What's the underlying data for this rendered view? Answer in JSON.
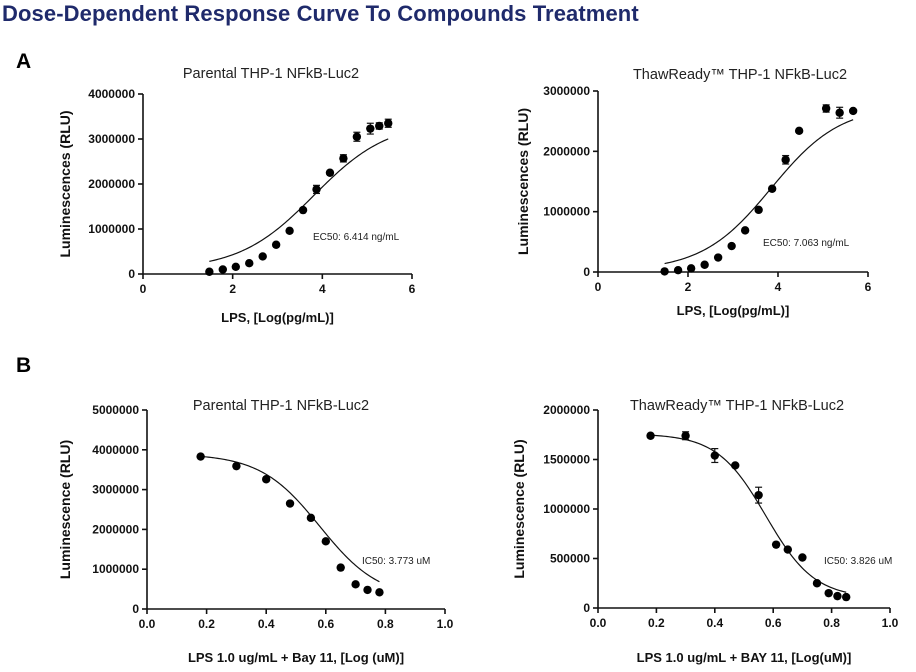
{
  "title": "Dose-Dependent Response Curve To Compounds Treatment",
  "panels": {
    "a": "A",
    "b": "B"
  },
  "chart_data": [
    {
      "type": "scatter",
      "panel": "A",
      "title": "Parental THP-1 NFkB-Luc2",
      "xlabel": "LPS, [Log(pg/mL)]",
      "ylabel": "Luminescences (RLU)",
      "xlim": [
        0,
        6
      ],
      "ylim": [
        0,
        4000000
      ],
      "xticks": [
        0,
        2,
        4,
        6
      ],
      "xtick_labels": [
        "0",
        "2",
        "4",
        "6"
      ],
      "yticks": [
        0,
        1000000,
        2000000,
        3000000,
        4000000
      ],
      "ytick_labels": [
        "0",
        "1000000",
        "2000000",
        "3000000",
        "4000000"
      ],
      "annotation": "EC50: 6.414 ng/mL",
      "fit": {
        "model": "sigmoid",
        "bottom": 90000,
        "top": 3400000,
        "mid": 3.81,
        "hill": 1.2
      },
      "series": [
        {
          "x": [
            1.48,
            1.78,
            2.07,
            2.37,
            2.67,
            2.97,
            3.27,
            3.57,
            3.87,
            4.17,
            4.47,
            4.77,
            5.07,
            5.27,
            5.47
          ],
          "y": [
            50000,
            100000,
            160000,
            240000,
            390000,
            650000,
            960000,
            1420000,
            1880000,
            2250000,
            2570000,
            3050000,
            3230000,
            3290000,
            3350000
          ],
          "err": [
            0,
            0,
            0,
            0,
            0,
            0,
            0,
            0,
            90000,
            0,
            80000,
            100000,
            120000,
            70000,
            90000
          ]
        }
      ]
    },
    {
      "type": "scatter",
      "panel": "A",
      "title": "ThawReady™ THP-1 NFkB-Luc2",
      "xlabel": "LPS, [Log(pg/mL)]",
      "ylabel": "Luminescences (RLU)",
      "xlim": [
        0,
        6
      ],
      "ylim": [
        0,
        3000000
      ],
      "xticks": [
        0,
        2,
        4,
        6
      ],
      "xtick_labels": [
        "0",
        "2",
        "4",
        "6"
      ],
      "yticks": [
        0,
        1000000,
        2000000,
        3000000
      ],
      "ytick_labels": [
        "0",
        "1000000",
        "2000000",
        "3000000"
      ],
      "annotation": "EC50: 7.063 ng/mL",
      "fit": {
        "model": "sigmoid",
        "bottom": 20000,
        "top": 2760000,
        "mid": 3.85,
        "hill": 1.3
      },
      "series": [
        {
          "x": [
            1.48,
            1.78,
            2.07,
            2.37,
            2.67,
            2.97,
            3.27,
            3.57,
            3.87,
            4.17,
            4.47,
            5.07,
            5.37,
            5.67
          ],
          "y": [
            10000,
            30000,
            60000,
            120000,
            240000,
            430000,
            690000,
            1030000,
            1380000,
            1860000,
            2340000,
            2710000,
            2640000,
            2670000
          ],
          "err": [
            0,
            0,
            0,
            0,
            0,
            0,
            0,
            0,
            0,
            70000,
            0,
            60000,
            90000,
            0
          ]
        }
      ]
    },
    {
      "type": "scatter",
      "panel": "B",
      "title": "Parental THP-1 NFkB-Luc2",
      "xlabel": "LPS 1.0 ug/mL + Bay 11, [Log (uM)]",
      "ylabel": "Luminescence (RLU)",
      "xlim": [
        0,
        1.0
      ],
      "ylim": [
        0,
        5000000
      ],
      "xticks": [
        0,
        0.2,
        0.4,
        0.6,
        0.8,
        1.0
      ],
      "xtick_labels": [
        "0.0",
        "0.2",
        "0.4",
        "0.6",
        "0.8",
        "1.0"
      ],
      "yticks": [
        0,
        1000000,
        2000000,
        3000000,
        4000000,
        5000000
      ],
      "ytick_labels": [
        "0",
        "1000000",
        "2000000",
        "3000000",
        "4000000",
        "5000000"
      ],
      "annotation": "IC50: 3.773 uM",
      "fit": {
        "model": "sigmoid",
        "bottom": 250000,
        "top": 3900000,
        "mid": 0.58,
        "hill": -10
      },
      "series": [
        {
          "x": [
            0.18,
            0.3,
            0.4,
            0.48,
            0.55,
            0.6,
            0.65,
            0.7,
            0.74,
            0.78
          ],
          "y": [
            3830000,
            3590000,
            3260000,
            2650000,
            2290000,
            1700000,
            1040000,
            620000,
            480000,
            420000
          ],
          "err": [
            0,
            0,
            0,
            0,
            0,
            0,
            0,
            0,
            0,
            0
          ]
        }
      ]
    },
    {
      "type": "scatter",
      "panel": "B",
      "title": "ThawReady™ THP-1 NFkB-Luc2",
      "xlabel": "LPS 1.0 ug/mL + BAY 11, [Log(uM)]",
      "ylabel": "Luminescence (RLU)",
      "xlim": [
        0,
        1.0
      ],
      "ylim": [
        0,
        2000000
      ],
      "xticks": [
        0,
        0.2,
        0.4,
        0.6,
        0.8,
        1.0
      ],
      "xtick_labels": [
        "0.0",
        "0.2",
        "0.4",
        "0.6",
        "0.8",
        "1.0"
      ],
      "yticks": [
        0,
        500000,
        1000000,
        1500000,
        2000000
      ],
      "ytick_labels": [
        "0",
        "500000",
        "1000000",
        "1500000",
        "2000000"
      ],
      "annotation": "IC50: 3.826 uM",
      "fit": {
        "model": "sigmoid",
        "bottom": 100000,
        "top": 1760000,
        "mid": 0.575,
        "hill": -12
      },
      "series": [
        {
          "x": [
            0.18,
            0.3,
            0.4,
            0.47,
            0.55,
            0.61,
            0.65,
            0.7,
            0.75,
            0.79,
            0.82,
            0.85
          ],
          "y": [
            1740000,
            1740000,
            1540000,
            1440000,
            1140000,
            640000,
            590000,
            510000,
            250000,
            150000,
            120000,
            110000
          ],
          "err": [
            0,
            40000,
            70000,
            0,
            80000,
            0,
            0,
            0,
            0,
            0,
            0,
            0
          ]
        }
      ]
    }
  ]
}
